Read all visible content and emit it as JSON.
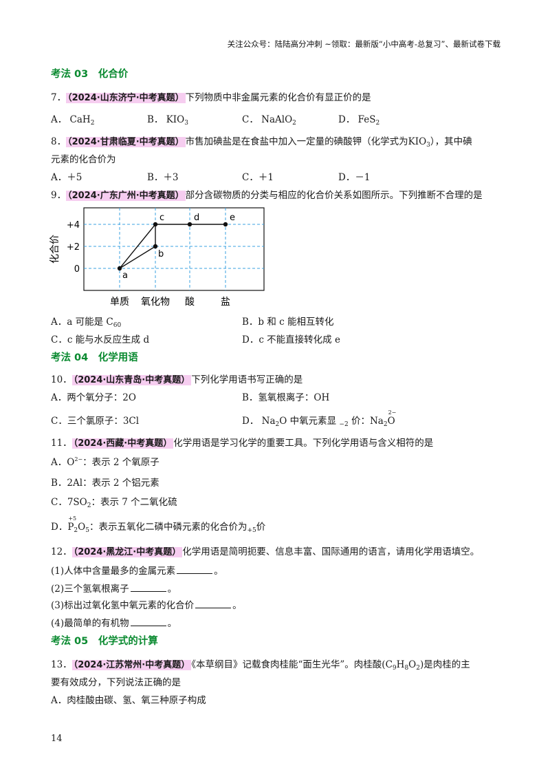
{
  "header_note": "关注公众号：陆陆高分冲刺 ~领取：最新版“小中高考-总复习”、最新试卷下载",
  "sections": {
    "s03": "考法 03　化合价",
    "s04": "考法 04　化学用语",
    "s05": "考法 05　化学式的计算"
  },
  "q7": {
    "num": "7．",
    "src": "（2024·山东济宁·中考真题）",
    "stem": "下列物质中非金属元素的化合价有显正价的是",
    "a_lab": "A．",
    "a_main": "CaH",
    "a_sub": "2",
    "b_lab": "B．",
    "b_main": "KIO",
    "b_sub": "3",
    "c_lab": "C．",
    "c_main": "NaAlO",
    "c_sub": "2",
    "d_lab": "D．",
    "d_main": "FeS",
    "d_sub": "2"
  },
  "q8": {
    "num": "8．",
    "src": "（2024·甘肃临夏·中考真题）",
    "stem1": "市售加碘盐是在食盐中加入一定量的碘酸钾（化学式为",
    "formula_main": "KIO",
    "formula_sub": "3",
    "stem2": "），其中碘",
    "stem3": "元素的化合价为",
    "a": "A．＋5",
    "b": "B．＋3",
    "c": "C．＋1",
    "d": "D．－1"
  },
  "q9": {
    "num": "9．",
    "src": "（2024·广东广州·中考真题）",
    "stem": "部分含碳物质的分类与相应的化合价关系如图所示。下列推断不合理的是",
    "a_text": "A．a 可能是 C",
    "a_sub": "60",
    "b_text": "B．b 和 c 能相互转化",
    "c_text": "C．c 能与水反应生成 d",
    "d_text": "D．c 不能直接转化成 e"
  },
  "chart_data": {
    "type": "scatter",
    "ylabel": "化合价",
    "y_ticks": [
      "+4",
      "+2",
      "0"
    ],
    "categories": [
      "单质",
      "氧化物",
      "酸",
      "盐"
    ],
    "points": [
      {
        "label": "a",
        "category": "单质",
        "valence": 0
      },
      {
        "label": "b",
        "category": "氧化物",
        "valence": 2
      },
      {
        "label": "c",
        "category": "氧化物",
        "valence": 4
      },
      {
        "label": "d",
        "category": "酸",
        "valence": 4
      },
      {
        "label": "e",
        "category": "盐",
        "valence": 4
      }
    ],
    "grid": true
  },
  "q10": {
    "num": "10．",
    "src": "（2024·山东青岛·中考真题）",
    "stem": "下列化学用语书写正确的是",
    "a": "A．两个氧分子：2O",
    "b": "B．氢氧根离子：OH",
    "c": "C．三个氯原子：3Cl",
    "d_lab": "D．",
    "d_na": "Na",
    "d_sub": "2",
    "d_o": "O",
    "d_mid": " 中氧元素显 ",
    "d_val": "−2",
    "d_end": " 价：",
    "d_na2": "Na",
    "d_sub2": "2",
    "d_o2": "O",
    "d_top2": "2−"
  },
  "q11": {
    "num": "11．",
    "src": "（2024·西藏·中考真题）",
    "stem": "化学用语是学习化学的重要工具。下列化学用语与含义相符的是",
    "a_lab": "A．",
    "a_main": "O",
    "a_sup": "2−",
    "a_text": "：表示 2 个氧原子",
    "b": "B．2Al：表示 2 个铝元素",
    "c_lab": "C．",
    "c_main": "7SO",
    "c_sub": "2",
    "c_text": "：表示 7 个二氧化硫",
    "d_lab": "D．",
    "d_top": "+5",
    "d_p": "P",
    "d_psub": "2",
    "d_o": "O",
    "d_osub": "5",
    "d_text": "：表示五氧化二磷中磷元素的化合价为",
    "d_val": "+5",
    "d_end": "价"
  },
  "q12": {
    "num": "12．",
    "src": "（2024·黑龙江·中考真题）",
    "stem": "化学用语是简明扼要、信息丰富、国际通用的语言，请用化学用语填空。",
    "p1": "(1)人体中含量最多的金属元素",
    "p2": "(2)三个氢氧根离子",
    "p3": "(3)标出过氧化氢中氧元素的化合价",
    "p4": "(4)最简单的有机物",
    "end": "。"
  },
  "q13": {
    "num": "13．",
    "src": "（2024·江苏常州·中考真题）",
    "stem1": "《本草纲目》记载食肉桂能“面生光华”。肉桂酸(",
    "f_c": "C",
    "f_c_sub": "9",
    "f_h": "H",
    "f_h_sub": "8",
    "f_o": "O",
    "f_o_sub": "2",
    "stem2": ")是肉桂的主",
    "stem3": "要有效成分，下列说法正确的是",
    "a": "A．肉桂酸由碳、氢、氧三种原子构成"
  },
  "page_number": "14"
}
